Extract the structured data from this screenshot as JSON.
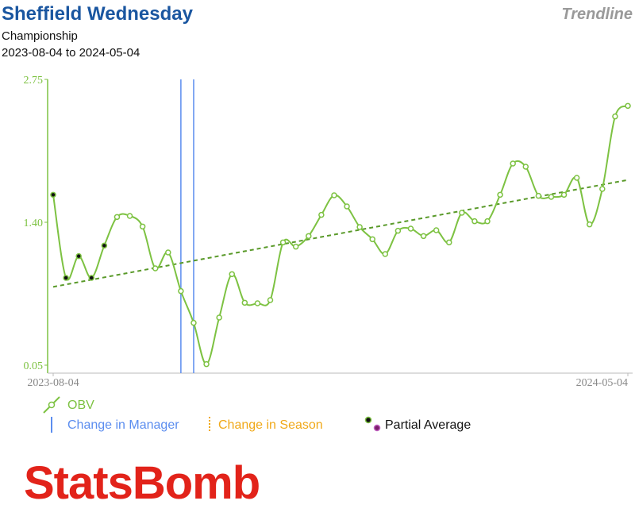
{
  "chart_data": {
    "type": "line",
    "title": "Sheffield Wednesday",
    "badge": "Trendline",
    "subtitle": "Championship",
    "date_range": "2023-08-04 to 2024-05-04",
    "categories": [
      "2023-08-04",
      null,
      null,
      null,
      null,
      null,
      null,
      null,
      null,
      null,
      null,
      null,
      null,
      null,
      null,
      null,
      null,
      null,
      null,
      null,
      null,
      null,
      null,
      null,
      null,
      null,
      null,
      null,
      null,
      null,
      null,
      null,
      null,
      null,
      null,
      null,
      null,
      null,
      null,
      null,
      null,
      null,
      null,
      null,
      null,
      "2024-05-04"
    ],
    "series": [
      {
        "name": "OBV",
        "color": "#7dc242",
        "values": [
          1.66,
          0.875,
          1.08,
          0.875,
          1.18,
          1.45,
          1.46,
          1.36,
          0.965,
          1.115,
          0.75,
          0.45,
          0.06,
          0.5,
          0.91,
          0.64,
          0.635,
          0.665,
          1.21,
          1.17,
          1.27,
          1.47,
          1.655,
          1.55,
          1.355,
          1.24,
          1.1,
          1.32,
          1.34,
          1.27,
          1.325,
          1.21,
          1.49,
          1.41,
          1.41,
          1.66,
          1.955,
          1.925,
          1.65,
          1.64,
          1.66,
          1.82,
          1.38,
          1.715,
          2.4,
          2.5
        ]
      }
    ],
    "trendline": {
      "color": "#5a9a2a",
      "values": [
        0.79,
        1.8
      ]
    },
    "partial_average_points": [
      0,
      1,
      2,
      3,
      4
    ],
    "manager_changes": [
      10,
      11
    ],
    "manager_color": "#5b8def",
    "season_color": "#f0a818",
    "ylim": [
      0.05,
      2.75
    ],
    "yticks": [
      0.05,
      {
        "value": 1.4,
        "label": "1.40"
      },
      2.75
    ],
    "legend": {
      "manager": "Change in Manager",
      "season": "Change in Season",
      "partial": "Partial Average"
    },
    "logo": "StatsBomb"
  }
}
